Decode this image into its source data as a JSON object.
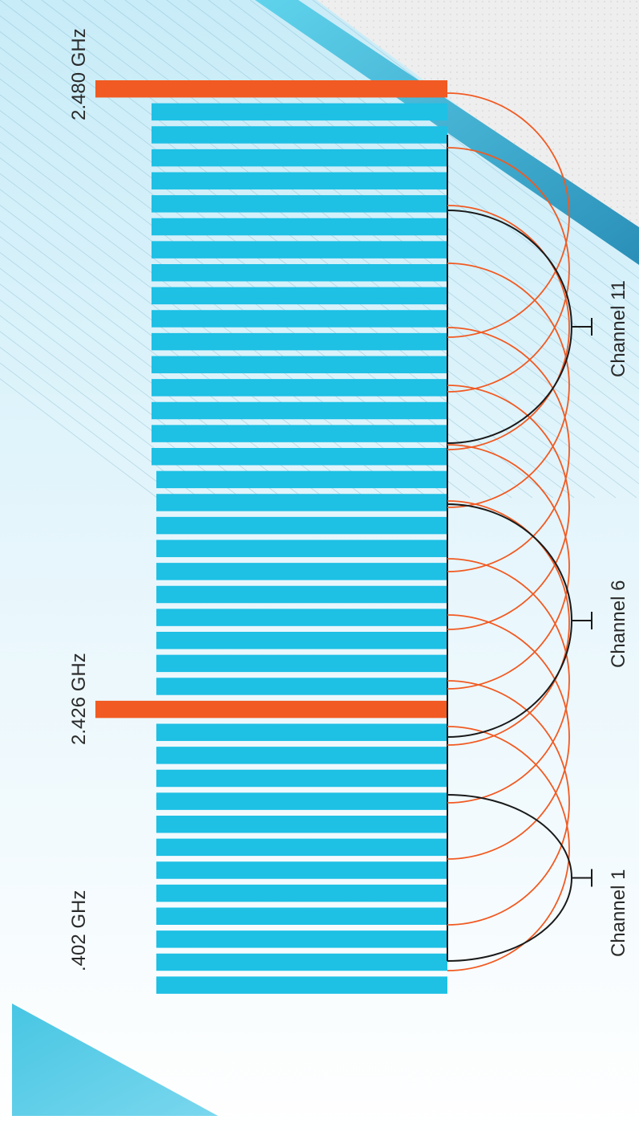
{
  "colors": {
    "bar": "#1ec0e4",
    "highlight_bar": "#f15a22",
    "ble_arc": "#f15a22",
    "wifi_arc": "#1a1a1a",
    "axis": "#111111",
    "background_top": "#c5ebf7",
    "accent_triangle": "#4fcbe6",
    "accent_band": "#2fb3dd"
  },
  "frequency_labels": {
    "low": ".402 GHz",
    "mid": "2.426 GHz",
    "high": "2.480 GHz"
  },
  "wifi_channels": [
    {
      "label": "Channel 1"
    },
    {
      "label": "Channel 6"
    },
    {
      "label": "Channel 11"
    }
  ],
  "ble_channels": {
    "count": 40,
    "highlighted_frequencies_ghz": [
      2.426,
      2.48
    ]
  }
}
